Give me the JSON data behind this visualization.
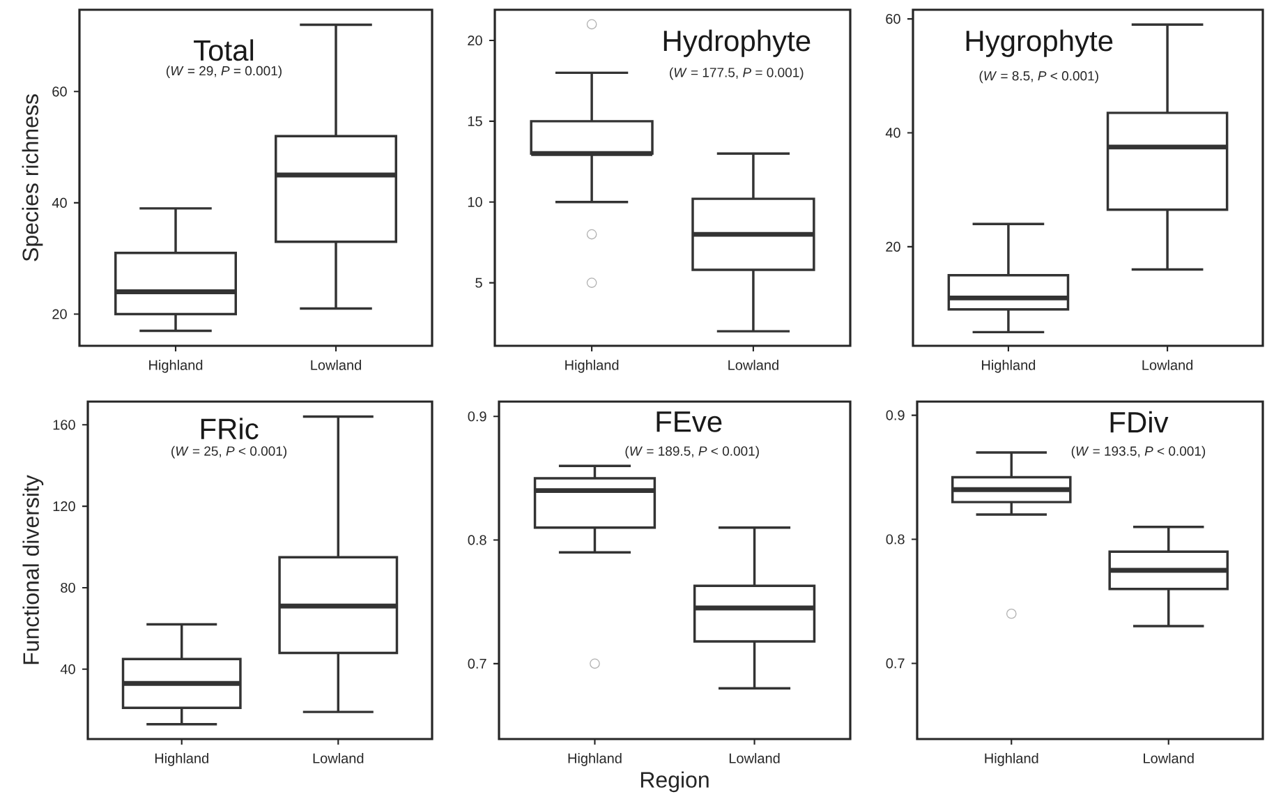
{
  "chart_data": [
    {
      "type": "box",
      "title": "Total",
      "subtitle": "(*W* = 29,  *P* = 0.001)",
      "ylabel": "Species richness",
      "categories": [
        "Highland",
        "Lowland"
      ],
      "ylim": [
        14.3,
        74.7
      ],
      "yticks": [
        20,
        40,
        60
      ],
      "boxes": [
        {
          "low": 17,
          "q1": 20,
          "median": 24,
          "q3": 31,
          "high": 39
        },
        {
          "low": 21,
          "q1": 33,
          "median": 45,
          "q3": 52,
          "high": 72
        }
      ]
    },
    {
      "type": "box",
      "title": "Hydrophyte",
      "subtitle": "(*W* = 177.5,  *P* = 0.001)",
      "categories": [
        "Highland",
        "Lowland"
      ],
      "ylim": [
        1.1,
        21.9
      ],
      "yticks": [
        5,
        10,
        15,
        20
      ],
      "boxes": [
        {
          "low": 10,
          "q1": 13,
          "median": 13,
          "q3": 15,
          "high": 18,
          "outliers": [
            21,
            8,
            5
          ]
        },
        {
          "low": 2,
          "q1": 5.8,
          "median": 8,
          "q3": 10.2,
          "high": 13
        }
      ]
    },
    {
      "type": "box",
      "title": "Hygrophyte",
      "subtitle": "(*W* = 8.5,  *P* < 0.001)",
      "categories": [
        "Highland",
        "Lowland"
      ],
      "ylim": [
        2.6,
        61.6
      ],
      "yticks": [
        20,
        40,
        60
      ],
      "boxes": [
        {
          "low": 5,
          "q1": 9,
          "median": 11,
          "q3": 15,
          "high": 24
        },
        {
          "low": 16,
          "q1": 26.5,
          "median": 37.5,
          "q3": 43.5,
          "high": 59
        }
      ]
    },
    {
      "type": "box",
      "title": "FRic",
      "subtitle": "(*W* = 25,  *P* < 0.001)",
      "ylabel": "Functional diversity",
      "categories": [
        "Highland",
        "Lowland"
      ],
      "ylim": [
        5.7,
        171.4
      ],
      "yticks": [
        40,
        80,
        120,
        160
      ],
      "boxes": [
        {
          "low": 13,
          "q1": 21,
          "median": 33,
          "q3": 45,
          "high": 62
        },
        {
          "low": 19,
          "q1": 48,
          "median": 71,
          "q3": 95,
          "high": 164
        }
      ]
    },
    {
      "type": "box",
      "title": "FEve",
      "subtitle": "(*W* = 189.5,  *P* < 0.001)",
      "xlabel": "Region",
      "categories": [
        "Highland",
        "Lowland"
      ],
      "ylim": [
        0.639,
        0.912
      ],
      "yticks": [
        0.7,
        0.8,
        0.9
      ],
      "boxes": [
        {
          "low": 0.79,
          "q1": 0.81,
          "median": 0.84,
          "q3": 0.85,
          "high": 0.86,
          "outliers": [
            0.7
          ]
        },
        {
          "low": 0.68,
          "q1": 0.718,
          "median": 0.745,
          "q3": 0.763,
          "high": 0.81
        }
      ]
    },
    {
      "type": "box",
      "title": "FDiv",
      "subtitle": "(*W* = 193.5,  *P* < 0.001)",
      "categories": [
        "Highland",
        "Lowland"
      ],
      "ylim": [
        0.639,
        0.911
      ],
      "yticks": [
        0.7,
        0.8,
        0.9
      ],
      "boxes": [
        {
          "low": 0.82,
          "q1": 0.83,
          "median": 0.84,
          "q3": 0.85,
          "high": 0.87,
          "outliers": [
            0.74
          ]
        },
        {
          "low": 0.73,
          "q1": 0.76,
          "median": 0.775,
          "q3": 0.79,
          "high": 0.81
        }
      ]
    }
  ]
}
